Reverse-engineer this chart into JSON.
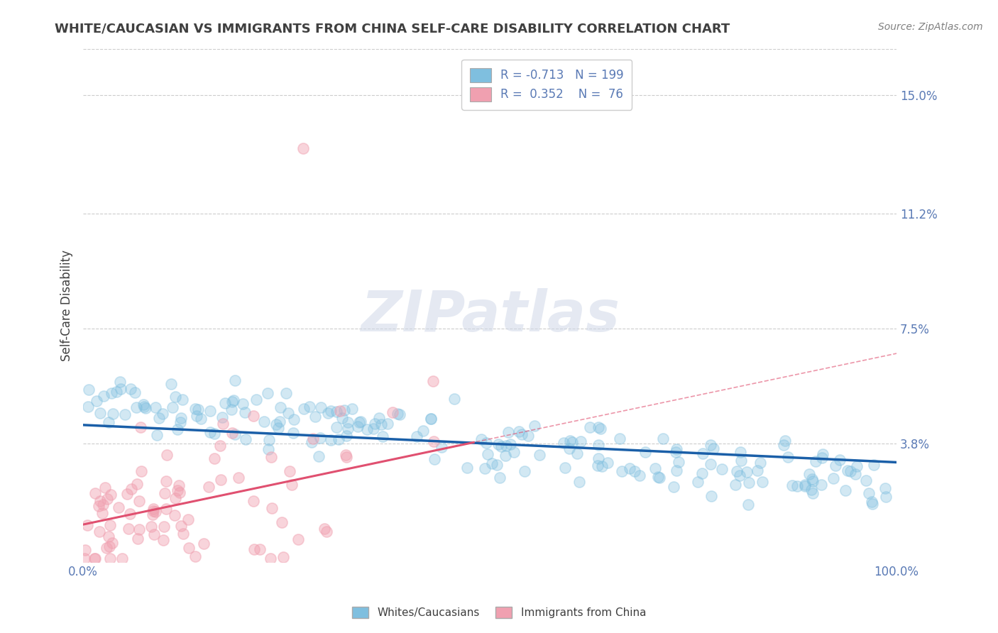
{
  "title": "WHITE/CAUCASIAN VS IMMIGRANTS FROM CHINA SELF-CARE DISABILITY CORRELATION CHART",
  "source": "Source: ZipAtlas.com",
  "ylabel": "Self-Care Disability",
  "xlim": [
    0.0,
    1.0
  ],
  "ylim": [
    0.0,
    0.165
  ],
  "yticks": [
    0.038,
    0.075,
    0.112,
    0.15
  ],
  "ytick_labels": [
    "3.8%",
    "7.5%",
    "11.2%",
    "15.0%"
  ],
  "xticks": [
    0.0,
    1.0
  ],
  "xtick_labels": [
    "0.0%",
    "100.0%"
  ],
  "blue_R": -0.713,
  "blue_N": 199,
  "pink_R": 0.352,
  "pink_N": 76,
  "blue_color": "#7fbfdf",
  "pink_color": "#f0a0b0",
  "blue_line_color": "#1a5fa8",
  "pink_line_color": "#e05070",
  "legend_label_blue": "Whites/Caucasians",
  "legend_label_pink": "Immigrants from China",
  "watermark": "ZIPatlas",
  "background_color": "#ffffff",
  "grid_color": "#cccccc",
  "title_color": "#404040",
  "tick_label_color": "#5a7ab5",
  "blue_intercept": 0.044,
  "blue_slope": -0.012,
  "pink_intercept": 0.012,
  "pink_slope": 0.055,
  "seed": 42
}
